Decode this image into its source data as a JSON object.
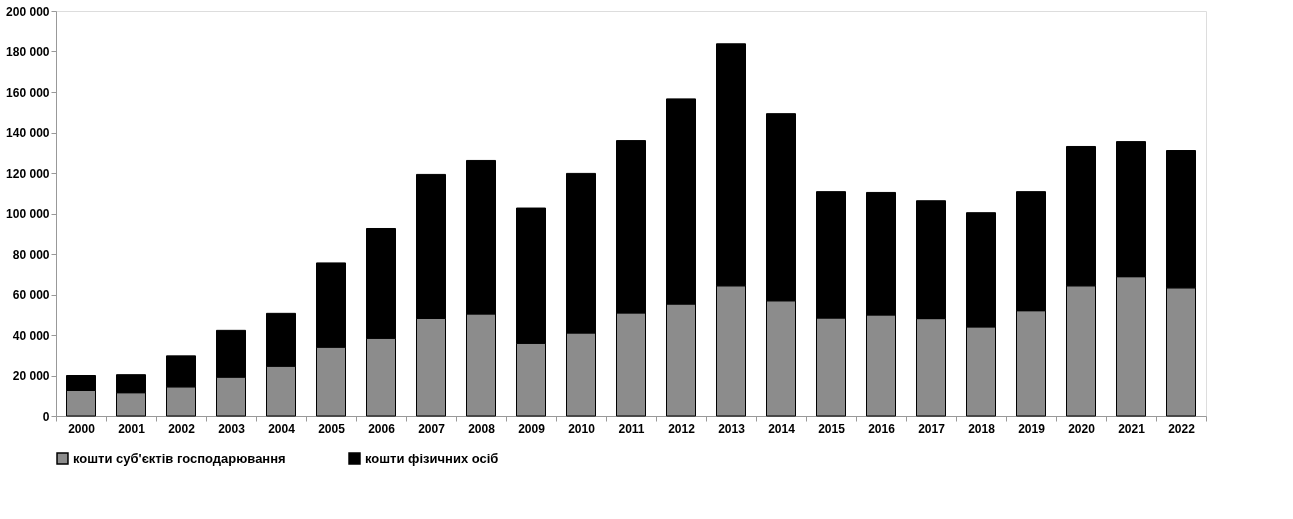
{
  "chart_data": {
    "type": "bar",
    "stacked": true,
    "categories": [
      "2000",
      "2001",
      "2002",
      "2003",
      "2004",
      "2005",
      "2006",
      "2007",
      "2008",
      "2009",
      "2010",
      "2011",
      "2012",
      "2013",
      "2014",
      "2015",
      "2016",
      "2017",
      "2018",
      "2019",
      "2020",
      "2021",
      "2022"
    ],
    "series": [
      {
        "name": "кошти суб'єктів господарювання",
        "color": "#8c8c8c",
        "values": [
          12600,
          11500,
          14400,
          19200,
          24600,
          34000,
          38400,
          48200,
          50400,
          35900,
          41000,
          50900,
          55300,
          64300,
          56900,
          48400,
          49900,
          48100,
          44000,
          52000,
          64300,
          68800,
          63300
        ]
      },
      {
        "name": "кошти фізичних осіб",
        "color": "#000000",
        "values": [
          7400,
          8900,
          15300,
          23100,
          26100,
          41600,
          54200,
          71100,
          75800,
          66800,
          78800,
          85100,
          101300,
          119500,
          92400,
          62400,
          60500,
          58200,
          56400,
          58800,
          68800,
          66700,
          67800
        ]
      }
    ],
    "ylim": [
      0,
      200000
    ],
    "yticks": [
      {
        "value": 0,
        "label": "0"
      },
      {
        "value": 20000,
        "label": "20 000"
      },
      {
        "value": 40000,
        "label": "40 000"
      },
      {
        "value": 60000,
        "label": "60 000"
      },
      {
        "value": 80000,
        "label": "80 000"
      },
      {
        "value": 100000,
        "label": "100 000"
      },
      {
        "value": 120000,
        "label": "120 000"
      },
      {
        "value": 140000,
        "label": "140 000"
      },
      {
        "value": 160000,
        "label": "160 000"
      },
      {
        "value": 180000,
        "label": "180 000"
      },
      {
        "value": 200000,
        "label": "200 000"
      }
    ],
    "grid": false,
    "legend": "bottom"
  }
}
